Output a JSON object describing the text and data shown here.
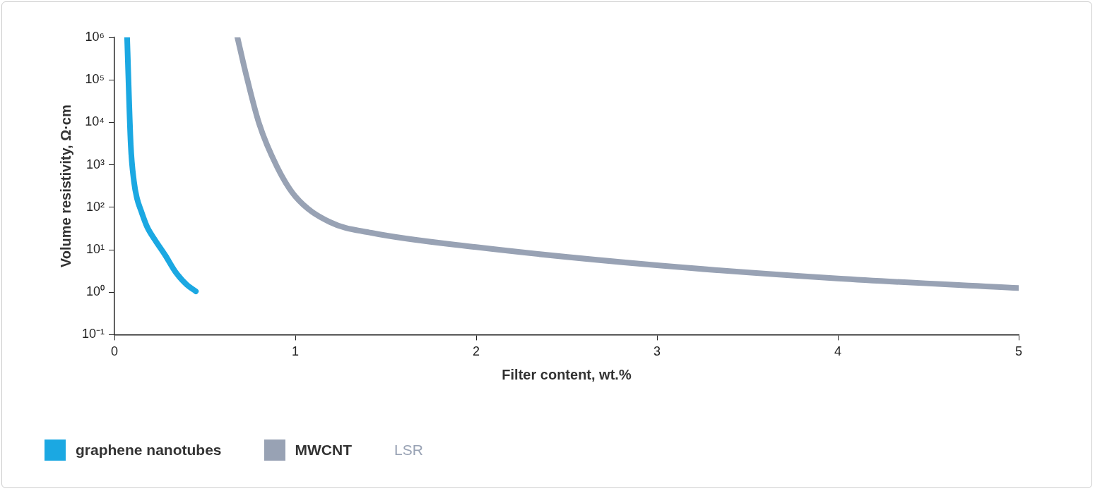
{
  "chart_data": {
    "type": "line",
    "xlabel": "Filter content, wt.%",
    "ylabel": "Volume resistivity, Ω·cm",
    "log": "y",
    "xlim": [
      0,
      5
    ],
    "xticks": [
      0,
      1,
      2,
      3,
      4,
      5
    ],
    "ylim": [
      0.1,
      1000000
    ],
    "yticks": [
      {
        "value": 0.1,
        "label": "10⁻¹"
      },
      {
        "value": 1,
        "label": "10⁰"
      },
      {
        "value": 10,
        "label": "10¹"
      },
      {
        "value": 100,
        "label": "10²"
      },
      {
        "value": 1000,
        "label": "10³"
      },
      {
        "value": 10000,
        "label": "10⁴"
      },
      {
        "value": 100000,
        "label": "10⁵"
      },
      {
        "value": 1000000,
        "label": "10⁶"
      }
    ],
    "grid": false,
    "legend": "bottom left",
    "marker": "none",
    "line_style": "solid",
    "annotations": [
      "LSR"
    ],
    "series": [
      {
        "name": "graphene nanotubes",
        "color": "#1ba8e2",
        "x": [
          0.07,
          0.09,
          0.108,
          0.125,
          0.147,
          0.18,
          0.224,
          0.28,
          0.34,
          0.4,
          0.45
        ],
        "values": [
          1000000,
          3000,
          400,
          160,
          83,
          35,
          17,
          7.5,
          2.9,
          1.5,
          1.05
        ]
      },
      {
        "name": "MWCNT",
        "color": "#98a2b4",
        "x": [
          0.68,
          0.725,
          0.8,
          0.9,
          1.0,
          1.19,
          1.42,
          2.0,
          3.0,
          4.0,
          5.0
        ],
        "values": [
          1000000,
          150000,
          9300,
          880,
          180,
          45,
          25,
          11.5,
          4.3,
          2.1,
          1.25
        ]
      }
    ]
  }
}
